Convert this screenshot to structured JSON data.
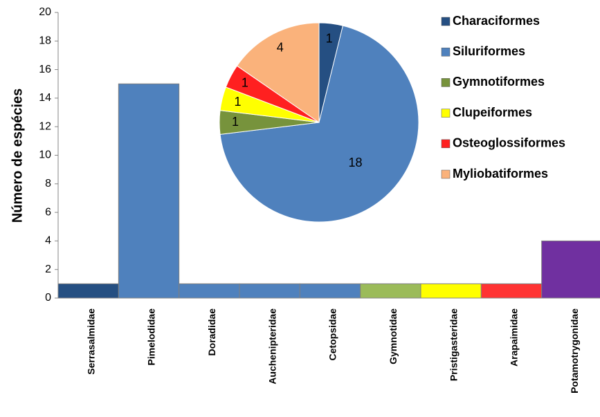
{
  "chart_data": [
    {
      "type": "bar",
      "y_label": "Número de espécies",
      "categories": [
        "Serrasalmidae",
        "Pimelodidae",
        "Doradidae",
        "Auchenipteridae",
        "Cetopsidae",
        "Gymnotidae",
        "Pristigasteridae",
        "Arapaimidae",
        "Potamotrygonidae"
      ],
      "values": [
        1,
        15,
        1,
        1,
        1,
        1,
        1,
        1,
        4
      ],
      "colors": [
        "#254f82",
        "#4f81bd",
        "#4f81bd",
        "#4f81bd",
        "#4f81bd",
        "#9bbb59",
        "#ffff00",
        "#ff3333",
        "#7030a0"
      ],
      "ylim": [
        0,
        20
      ],
      "yticks": [
        0,
        2,
        4,
        6,
        8,
        10,
        12,
        14,
        16,
        18,
        20
      ],
      "grid": false
    },
    {
      "type": "pie",
      "series": [
        {
          "name": "Characiformes",
          "color": "#254f82",
          "values": [
            1
          ]
        },
        {
          "name": "Siluriformes",
          "color": "#4f81bd",
          "values": [
            18
          ]
        },
        {
          "name": "Gymnotiformes",
          "color": "#77933c",
          "values": [
            1
          ]
        },
        {
          "name": "Clupeiformes",
          "color": "#ffff00",
          "values": [
            1
          ]
        },
        {
          "name": "Osteoglossiformes",
          "color": "#ff2020",
          "values": [
            1
          ]
        },
        {
          "name": "Myliobatiformes",
          "color": "#fab27b",
          "values": [
            4
          ]
        }
      ],
      "legend": "right"
    }
  ]
}
